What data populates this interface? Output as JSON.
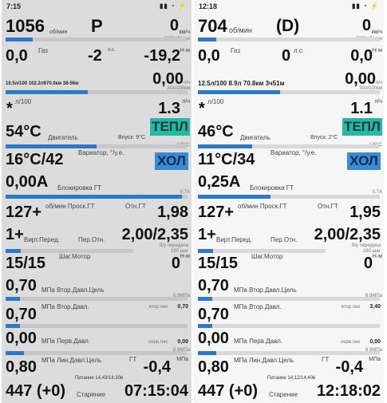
{
  "colors": {
    "bar_fill": "#2b79c8",
    "warm_button": "#27b8a6",
    "cold_button": "#3a8ad4"
  },
  "left": {
    "status": {
      "time": "7:15",
      "icons": "▮▮ ◔ ⚡"
    },
    "rpm": {
      "value": "1056",
      "unit": "об/мин",
      "progress": 0.15
    },
    "gear": "P",
    "speed": {
      "value": "0",
      "unit": "км/ч",
      "max": "7000об/мин"
    },
    "gas": {
      "value": "0,0",
      "label": "Газ"
    },
    "power": {
      "value": "-2",
      "unit": "л.с."
    },
    "torque": {
      "value": "-19,2",
      "unit": "Н·м"
    },
    "fuel_line": {
      "text": "10.5л/100 102.2л970.0км 38-56м",
      "progress": 0.45
    },
    "fuel_rate": {
      "value": "0,00",
      "unit1": "л/ч",
      "unit2": "30л/100км"
    },
    "cons100": {
      "value": "*",
      "unit": "л/100",
      "right": "1.3",
      "right_unit": "л/ч"
    },
    "engine_temp": {
      "value": "54°C",
      "label": "Двигатель",
      "intake": "Впуск: 9°C",
      "progress": 0.5,
      "max": "120°C"
    },
    "heat_button": "ТЕПЛ",
    "variator": {
      "value": "16°C/42",
      "label": "Вариатор, °/у.е."
    },
    "cold_button": "ХОЛ",
    "current": {
      "value": "0,00А",
      "label": "Блокировка ГТ",
      "max": "0,7А",
      "progress": 0.97
    },
    "slip": {
      "value": "127+",
      "label": "об/мин Проск.ГТ",
      "label2": "Отн.ГТ",
      "right": "1,98"
    },
    "ratio": {
      "value": "1+",
      "label": "Вирт.Перед.",
      "label2": "Пер.Отн.",
      "right": "2,00/2,35",
      "sub": "190 шаг",
      "sub2": "б/у передача"
    },
    "step": {
      "value": "15/15",
      "label": "Шаг.Мотор",
      "right": "0",
      "unit": "Н·м",
      "progress": 0.12
    },
    "p_sec_target": {
      "value": "0,70",
      "label": "МПа Втор.Давл.Цель",
      "max": "6,9МПа",
      "progress": 0.08
    },
    "p_sec": {
      "value": "0,70",
      "label": "МПа Втор.Давл.",
      "right_label": "втор.пик",
      "right": "0,70",
      "progress": 0.08
    },
    "p_prim": {
      "value": "0,00",
      "label": "МПа Перв.Давл.",
      "right_label": "перв.пик",
      "right": "0,00",
      "max": "6,9МПа"
    },
    "p_line": {
      "value": "0,80",
      "label": "МПа Лин.Давл.Цель",
      "label2": "ГТ",
      "right": "-0,4",
      "unit": "МПа",
      "progress": 0.1
    },
    "footer": {
      "left": "447 (+0)",
      "power_label": "Питание 14,43/14,30в",
      "aging_label": "Старение",
      "clock": "07:15:04"
    }
  },
  "right": {
    "status": {
      "time": "12:18",
      "icons": "▮▮ ◔ ⚡"
    },
    "rpm": {
      "value": "704",
      "unit": "об/мин",
      "progress": 0.1
    },
    "gear": "(D)",
    "speed": {
      "value": "0",
      "unit": "км/ч",
      "max": "7000об/мин"
    },
    "gas": {
      "value": "0,0",
      "label": "Газ"
    },
    "power": {
      "value": "0",
      "unit": "л.с."
    },
    "torque": {
      "value": "0,0",
      "unit": "Н·м"
    },
    "fuel_line": {
      "text": "12.5л/100 8.9л 70.8км 3ч51м",
      "progress": 0.45
    },
    "fuel_rate": {
      "value": "0,00",
      "unit1": "л/ч",
      "unit2": "30л/100км"
    },
    "cons100": {
      "value": "*",
      "unit": "л/100",
      "right": "1.1",
      "right_unit": "л/ч"
    },
    "engine_temp": {
      "value": "46°C",
      "label": "Двигатель",
      "intake": "Впуск: 2°C",
      "progress": 0.3,
      "max": "120°C"
    },
    "heat_button": "ТЕПЛ",
    "variator": {
      "value": "11°C/34",
      "label": "Вариатор, °/у.е."
    },
    "cold_button": "ХОЛ",
    "current": {
      "value": "0,25А",
      "label": "Блокировка ГТ",
      "max": "0,7А",
      "progress": 0.4
    },
    "slip": {
      "value": "127+",
      "label": "об/мин Проск.ГТ",
      "label2": "Отн.ГТ",
      "right": "1,95"
    },
    "ratio": {
      "value": "1+",
      "label": "Вирт.Перед.",
      "label2": "Пер.Отн.",
      "right": "2,00/2,35",
      "sub": "190 шаг",
      "sub2": "б/у передача"
    },
    "step": {
      "value": "15/15",
      "label": "Шаг.Мотор",
      "right": "0",
      "unit": "Н·м",
      "progress": 0.12
    },
    "p_sec_target": {
      "value": "0,70",
      "label": "МПа Втор.Давл.Цель",
      "max": "6,9МПа",
      "progress": 0.08
    },
    "p_sec": {
      "value": "0,70",
      "label": "МПа Втор.Давл.",
      "right_label": "втор.пик",
      "right": "3,40",
      "progress": 0.08
    },
    "p_prim": {
      "value": "0,00",
      "label": "МПа Перв.Давл.",
      "right_label": "перв.пик",
      "right": "0,00",
      "max": "6,9МПа"
    },
    "p_line": {
      "value": "0,80",
      "label": "МПа Лин.Давл.Цель",
      "label2": "ГТ",
      "right": "-0,4",
      "unit": "МПа",
      "progress": 0.1
    },
    "footer": {
      "left": "447 (+0)",
      "power_label": "Питание 14,12/14,40в",
      "aging_label": "Старение",
      "clock": "12:18:02"
    }
  }
}
